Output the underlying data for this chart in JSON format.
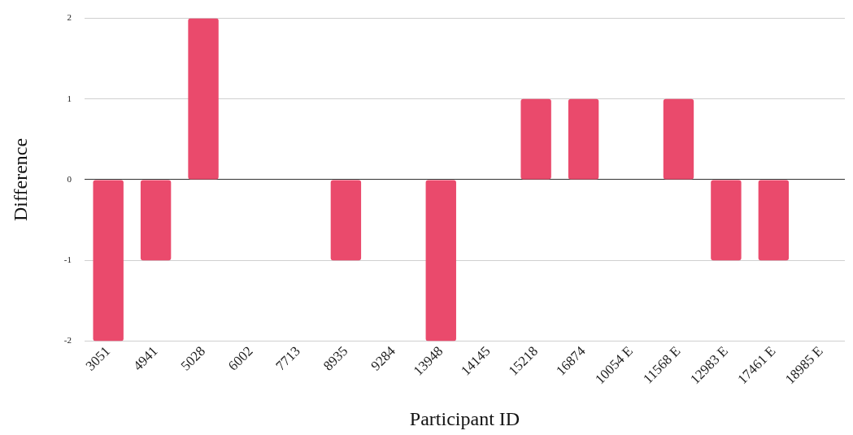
{
  "chart_data": {
    "type": "bar",
    "xlabel": "Participant ID",
    "ylabel": "Difference",
    "categories": [
      "3051",
      "4941",
      "5028",
      "6002",
      "7713",
      "8935",
      "9284",
      "13948",
      "14145",
      "15218",
      "16874",
      "10054 E",
      "11568 E",
      "12983 E",
      "17461 E",
      "18985 E"
    ],
    "values": [
      -2,
      -1,
      2,
      0,
      0,
      -1,
      0,
      -2,
      0,
      1,
      1,
      0,
      1,
      -1,
      -1,
      0
    ],
    "color": "#ea4a6c",
    "ylim": [
      -2,
      2
    ],
    "yticks": [
      -2,
      -1,
      0,
      1,
      2
    ],
    "grid": "y",
    "legend": false
  }
}
